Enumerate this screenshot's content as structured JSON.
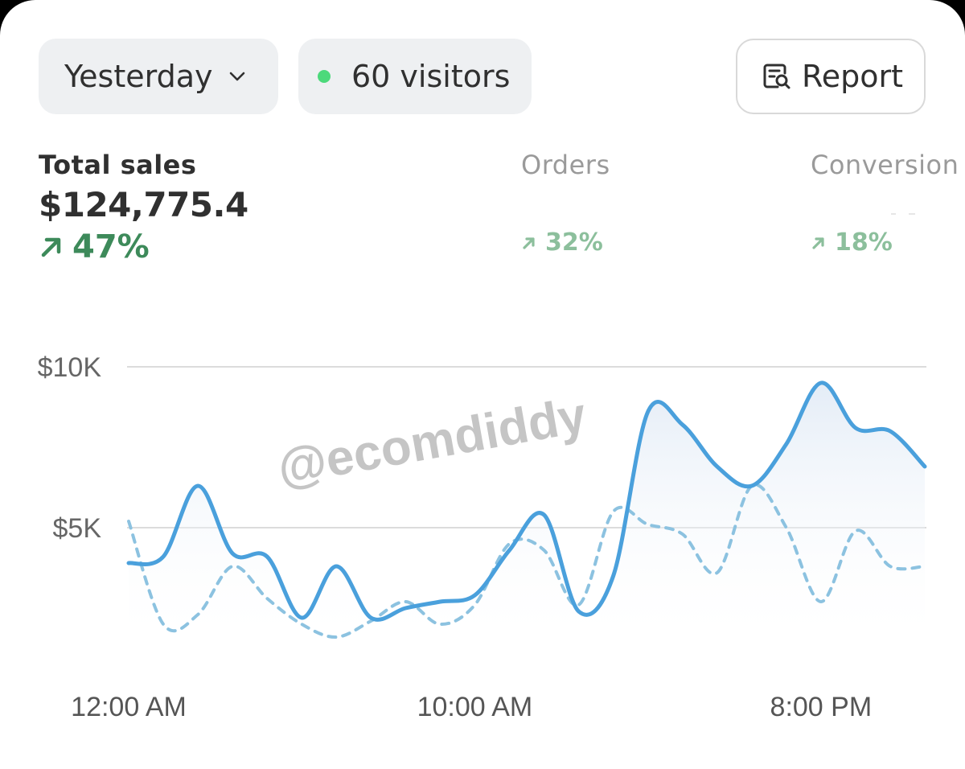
{
  "toolbar": {
    "period_label": "Yesterday",
    "visitors_label": "60 visitors",
    "report_label": "Report"
  },
  "metrics": {
    "total_sales": {
      "label": "Total sales",
      "value": "$124,775.4",
      "change": "47%"
    },
    "orders": {
      "label": "Orders",
      "change": "32%"
    },
    "conversion": {
      "label": "Conversion",
      "change": "18%"
    }
  },
  "watermark": "@ecomdiddy",
  "icons": {
    "period_dropdown": "chevron-down-icon",
    "live_indicator": "green-dot-icon",
    "report": "report-search-icon",
    "trend": "arrow-up-right-icon"
  },
  "colors": {
    "primary_series": "#4aa0dc",
    "comparison_series": "#8cc2e0",
    "positive_change": "#3d8a5a",
    "positive_change_muted": "#8cbf9c",
    "live_dot": "#4cd97b"
  },
  "chart_data": {
    "type": "line",
    "y_ticks": [
      "$10K",
      "$5K"
    ],
    "x_ticks": [
      "12:00 AM",
      "10:00 AM",
      "8:00 PM"
    ],
    "ylim": [
      0,
      10000
    ],
    "grid": true,
    "x": [
      "12:00 AM",
      "1:00 AM",
      "2:00 AM",
      "3:00 AM",
      "4:00 AM",
      "5:00 AM",
      "6:00 AM",
      "7:00 AM",
      "8:00 AM",
      "9:00 AM",
      "10:00 AM",
      "11:00 AM",
      "12:00 PM",
      "1:00 PM",
      "2:00 PM",
      "3:00 PM",
      "4:00 PM",
      "5:00 PM",
      "6:00 PM",
      "7:00 PM",
      "8:00 PM",
      "9:00 PM",
      "10:00 PM",
      "11:00 PM"
    ],
    "series": [
      {
        "style": "solid",
        "values": [
          3900,
          4100,
          6300,
          4200,
          4100,
          2200,
          3800,
          2200,
          2500,
          2700,
          2900,
          4300,
          5400,
          2400,
          3500,
          8600,
          8200,
          6900,
          6300,
          7600,
          9500,
          8100,
          8000,
          6900
        ]
      },
      {
        "style": "dashed",
        "values": [
          5200,
          2000,
          2300,
          3800,
          2800,
          2000,
          1600,
          2100,
          2700,
          2000,
          2600,
          4500,
          4300,
          2600,
          5500,
          5100,
          4800,
          3600,
          6300,
          5000,
          2700,
          4900,
          3800,
          3800
        ]
      }
    ]
  }
}
